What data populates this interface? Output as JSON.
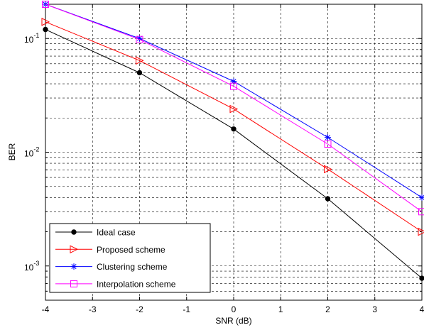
{
  "chart_data": {
    "type": "line",
    "xlabel": "SNR (dB)",
    "ylabel": "BER",
    "x": [
      -4,
      -2,
      0,
      2,
      4
    ],
    "xlim": [
      -4,
      4
    ],
    "ylim": [
      0.0005,
      0.2
    ],
    "yscale": "log",
    "grid": true,
    "legend_position": "bottom-left",
    "x_ticks": [
      "-4",
      "-3",
      "-2",
      "-1",
      "0",
      "1",
      "2",
      "3",
      "4"
    ],
    "y_ticks": [
      {
        "base": "10",
        "exp": "-1",
        "value": 0.1
      },
      {
        "base": "10",
        "exp": "-2",
        "value": 0.01
      },
      {
        "base": "10",
        "exp": "-3",
        "value": 0.001
      }
    ],
    "series": [
      {
        "name": "Ideal case",
        "color": "#000000",
        "marker": "dot",
        "values": [
          0.12,
          0.05,
          0.016,
          0.0039,
          0.00078
        ]
      },
      {
        "name": "Proposed scheme",
        "color": "#ff0000",
        "marker": "triangle-right",
        "values": [
          0.14,
          0.064,
          0.024,
          0.0071,
          0.002
        ]
      },
      {
        "name": "Clustering scheme",
        "color": "#0000ff",
        "marker": "star",
        "values": [
          0.2,
          0.1,
          0.042,
          0.0135,
          0.004
        ]
      },
      {
        "name": "Interpolation scheme",
        "color": "#ff00ff",
        "marker": "square",
        "values": [
          0.2,
          0.098,
          0.038,
          0.0118,
          0.003
        ]
      }
    ]
  }
}
